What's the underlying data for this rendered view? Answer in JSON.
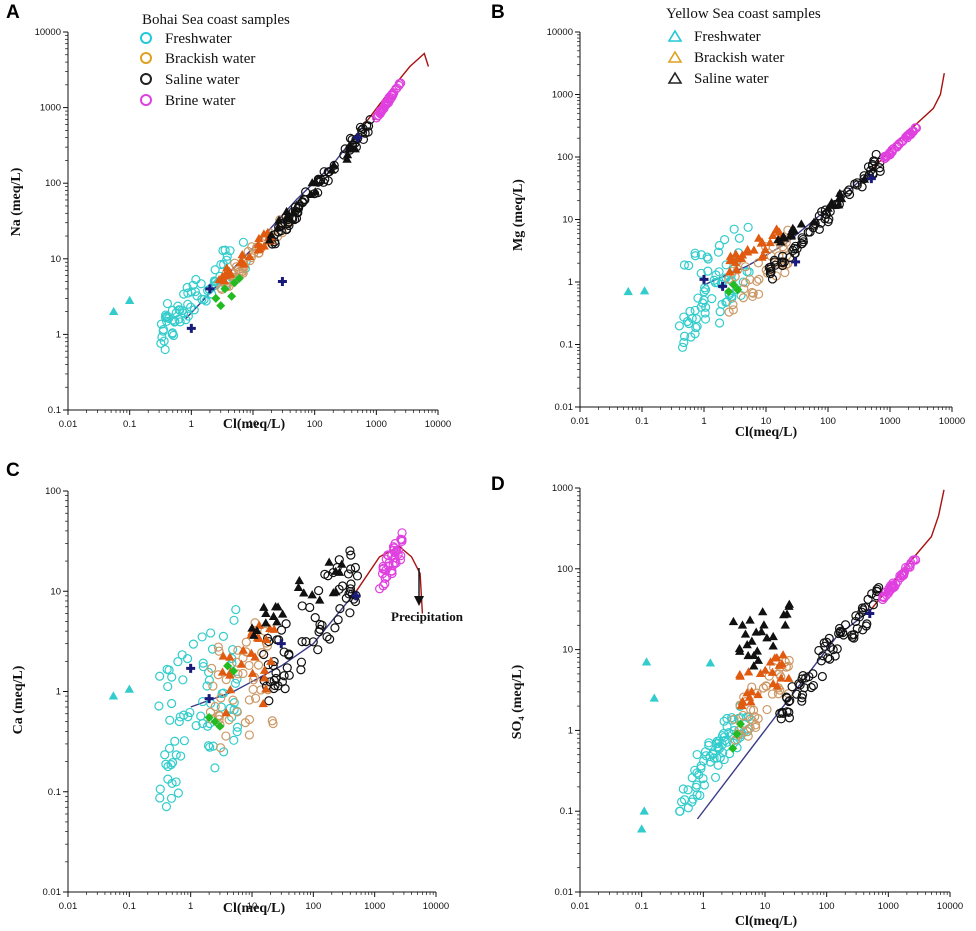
{
  "figure": {
    "letters": [
      "A",
      "B",
      "C",
      "D"
    ]
  },
  "colors": {
    "fresh": "#33cccc",
    "brackish": "#cc9966",
    "saline": "#111111",
    "brine": "#e040e0",
    "orange_tri": "#e05a10",
    "green": "#22bb22",
    "navy": "#1a1a7a",
    "trend_line": "#3a3a88",
    "evap_line": "#aa1111"
  },
  "legends": {
    "bohai": {
      "title": "Bohai Sea coast samples",
      "marker": "circle",
      "items": [
        {
          "label": "Freshwater",
          "color": "#22c8d8"
        },
        {
          "label": "Brackish water",
          "color": "#e0a020"
        },
        {
          "label": "Saline water",
          "color": "#222222"
        },
        {
          "label": "Brine water",
          "color": "#e040e0"
        }
      ]
    },
    "yellow": {
      "title": "Yellow Sea coast samples",
      "marker": "triangle",
      "items": [
        {
          "label": "Freshwater",
          "color": "#22c8d8"
        },
        {
          "label": "Brackish water",
          "color": "#e0a020"
        },
        {
          "label": "Saline water",
          "color": "#222222"
        }
      ]
    }
  },
  "annotations": {
    "precipitation": "Precipitation"
  },
  "chart_data": [
    {
      "panel": "A",
      "type": "scatter",
      "xscale": "log",
      "yscale": "log",
      "xlabel": "Cl(meq/L)",
      "ylabel": "Na (meq/L)",
      "xlim": [
        0.01,
        10000
      ],
      "ylim": [
        0.1,
        10000
      ],
      "xticks": [
        "0.01",
        "0.1",
        "1",
        "10",
        "100",
        "1000",
        "10000"
      ],
      "yticks": [
        "0.1",
        "1",
        "10",
        "100",
        "1000",
        "10000"
      ],
      "trend_line": [
        [
          0.8,
          1.6
        ],
        [
          3,
          5
        ],
        [
          10,
          14
        ],
        [
          50,
          60
        ],
        [
          200,
          180
        ],
        [
          600,
          560
        ]
      ],
      "evaporation_line": [
        [
          600,
          560
        ],
        [
          1500,
          1500
        ],
        [
          3500,
          3500
        ],
        [
          6000,
          5200
        ],
        [
          7000,
          3500
        ]
      ],
      "groups": [
        {
          "name": "Bohai freshwater",
          "marker": "circle",
          "color": "fresh",
          "cx": [
            0.3,
            8
          ],
          "cy": [
            0.6,
            25
          ],
          "n": 70,
          "seed": 11,
          "corr": 0.7
        },
        {
          "name": "Bohai brackish",
          "marker": "circle",
          "color": "brackish",
          "cx": [
            3,
            40
          ],
          "cy": [
            3,
            45
          ],
          "n": 45,
          "seed": 12,
          "corr": 0.8
        },
        {
          "name": "Bohai saline",
          "marker": "circle",
          "color": "saline",
          "cx": [
            20,
            800
          ],
          "cy": [
            15,
            700
          ],
          "n": 70,
          "seed": 13,
          "corr": 0.93
        },
        {
          "name": "Bohai brine",
          "marker": "circle",
          "color": "brine",
          "cx": [
            1000,
            2700
          ],
          "cy": [
            700,
            2500
          ],
          "n": 40,
          "seed": 14,
          "corr": 0.95
        },
        {
          "name": "Yellow brackish",
          "marker": "triangle",
          "color": "orange_tri",
          "cx": [
            2.5,
            20
          ],
          "cy": [
            4,
            25
          ],
          "n": 25,
          "seed": 15,
          "corr": 0.8
        },
        {
          "name": "Yellow saline",
          "marker": "triangle",
          "color": "saline",
          "cx": [
            15,
            500
          ],
          "cy": [
            15,
            400
          ],
          "n": 20,
          "seed": 16,
          "corr": 0.9
        },
        {
          "name": "Yellow freshwater",
          "marker": "triangle",
          "color": "fresh",
          "points": [
            [
              0.055,
              2.0
            ],
            [
              0.1,
              2.8
            ]
          ]
        },
        {
          "name": "Green markers",
          "marker": "diamond",
          "color": "green",
          "points": [
            [
              2.5,
              3
            ],
            [
              3.5,
              4
            ],
            [
              4.5,
              3.2
            ],
            [
              3,
              2.4
            ],
            [
              5,
              4.8
            ],
            [
              6,
              5.5
            ]
          ]
        },
        {
          "name": "Navy markers",
          "marker": "cross",
          "color": "navy",
          "points": [
            [
              1,
              1.2
            ],
            [
              2,
              4
            ],
            [
              30,
              5
            ],
            [
              500,
              400
            ]
          ]
        }
      ]
    },
    {
      "panel": "B",
      "type": "scatter",
      "xscale": "log",
      "yscale": "log",
      "xlabel": "Cl(meq/L)",
      "ylabel": "Mg (meq/L)",
      "xlim": [
        0.01,
        10000
      ],
      "ylim": [
        0.01,
        10000
      ],
      "xticks": [
        "0.01",
        "0.1",
        "1",
        "10",
        "100",
        "1000",
        "10000"
      ],
      "yticks": [
        "0.01",
        "0.1",
        "1",
        "10",
        "100",
        "1000",
        "10000"
      ],
      "trend_line": [
        [
          1,
          0.9
        ],
        [
          5,
          1.8
        ],
        [
          20,
          4
        ],
        [
          100,
          15
        ],
        [
          500,
          60
        ]
      ],
      "evaporation_line": [
        [
          500,
          60
        ],
        [
          1500,
          200
        ],
        [
          5000,
          600
        ],
        [
          6500,
          1000
        ],
        [
          7500,
          2200
        ]
      ],
      "groups": [
        {
          "name": "Bohai freshwater",
          "marker": "circle",
          "color": "fresh",
          "cx": [
            0.4,
            6
          ],
          "cy": [
            0.08,
            11
          ],
          "n": 70,
          "seed": 21,
          "corr": 0.35
        },
        {
          "name": "Bohai brackish",
          "marker": "circle",
          "color": "brackish",
          "cx": [
            2.5,
            25
          ],
          "cy": [
            0.3,
            8
          ],
          "n": 40,
          "seed": 22,
          "corr": 0.5
        },
        {
          "name": "Bohai saline",
          "marker": "circle",
          "color": "saline",
          "cx": [
            10,
            700
          ],
          "cy": [
            1,
            110
          ],
          "n": 70,
          "seed": 23,
          "corr": 0.9
        },
        {
          "name": "Bohai brine",
          "marker": "circle",
          "color": "brine",
          "cx": [
            800,
            2800
          ],
          "cy": [
            90,
            320
          ],
          "n": 40,
          "seed": 24,
          "corr": 0.95
        },
        {
          "name": "Yellow brackish",
          "marker": "triangle",
          "color": "orange_tri",
          "cx": [
            2.5,
            20
          ],
          "cy": [
            1.2,
            9
          ],
          "n": 25,
          "seed": 25,
          "corr": 0.6
        },
        {
          "name": "Yellow saline",
          "marker": "triangle",
          "color": "saline",
          "cx": [
            15,
            600
          ],
          "cy": [
            3,
            80
          ],
          "n": 20,
          "seed": 26,
          "corr": 0.85
        },
        {
          "name": "Yellow freshwater",
          "marker": "triangle",
          "color": "fresh",
          "points": [
            [
              0.06,
              0.7
            ],
            [
              0.11,
              0.72
            ]
          ]
        },
        {
          "name": "Green markers",
          "marker": "diamond",
          "color": "green",
          "points": [
            [
              2.5,
              0.7
            ],
            [
              3,
              0.9
            ],
            [
              3.5,
              0.75
            ]
          ]
        },
        {
          "name": "Navy markers",
          "marker": "cross",
          "color": "navy",
          "points": [
            [
              1,
              1.1
            ],
            [
              2,
              0.85
            ],
            [
              30,
              2.1
            ],
            [
              500,
              45
            ]
          ]
        }
      ]
    },
    {
      "panel": "C",
      "type": "scatter",
      "xscale": "log",
      "yscale": "log",
      "xlabel": "Cl(meq/L)",
      "ylabel": "Ca (meq/L)",
      "xlim": [
        0.01,
        10000
      ],
      "ylim": [
        0.01,
        100
      ],
      "xticks": [
        "0.01",
        "0.1",
        "1",
        "10",
        "100",
        "1000",
        "10000"
      ],
      "yticks": [
        "0.01",
        "0.1",
        "1",
        "10",
        "100"
      ],
      "trend_line": [
        [
          1,
          0.7
        ],
        [
          5,
          1
        ],
        [
          30,
          1.8
        ],
        [
          100,
          3
        ],
        [
          500,
          10
        ]
      ],
      "evaporation_line": [
        [
          500,
          10
        ],
        [
          1200,
          22
        ],
        [
          2500,
          28
        ],
        [
          4000,
          22
        ],
        [
          5500,
          15
        ],
        [
          6000,
          6
        ]
      ],
      "groups": [
        {
          "name": "Bohai freshwater",
          "marker": "circle",
          "color": "fresh",
          "cx": [
            0.3,
            6
          ],
          "cy": [
            0.06,
            7
          ],
          "n": 75,
          "seed": 31,
          "corr": 0.3
        },
        {
          "name": "Bohai brackish",
          "marker": "circle",
          "color": "brackish",
          "cx": [
            2,
            25
          ],
          "cy": [
            0.15,
            8
          ],
          "n": 45,
          "seed": 32,
          "corr": 0.3
        },
        {
          "name": "Bohai saline",
          "marker": "circle",
          "color": "saline",
          "cx": [
            15,
            600
          ],
          "cy": [
            0.6,
            40
          ],
          "n": 70,
          "seed": 33,
          "corr": 0.6
        },
        {
          "name": "Bohai brine",
          "marker": "circle",
          "color": "brine",
          "cx": [
            1200,
            2800
          ],
          "cy": [
            9,
            42
          ],
          "n": 40,
          "seed": 34,
          "corr": 0.6
        },
        {
          "name": "Yellow brackish",
          "marker": "triangle",
          "color": "orange_tri",
          "cx": [
            2.5,
            25
          ],
          "cy": [
            0.3,
            7
          ],
          "n": 25,
          "seed": 35,
          "corr": 0.4
        },
        {
          "name": "Yellow saline",
          "marker": "triangle",
          "color": "saline",
          "cx": [
            10,
            500
          ],
          "cy": [
            3,
            30
          ],
          "n": 22,
          "seed": 36,
          "corr": 0.6
        },
        {
          "name": "Yellow freshwater",
          "marker": "triangle",
          "color": "fresh",
          "points": [
            [
              0.055,
              0.9
            ],
            [
              0.1,
              1.05
            ]
          ]
        },
        {
          "name": "Green markers",
          "marker": "diamond",
          "color": "green",
          "points": [
            [
              2,
              0.55
            ],
            [
              2.5,
              0.5
            ],
            [
              3,
              0.45
            ],
            [
              4,
              1.8
            ],
            [
              5,
              1.6
            ]
          ]
        },
        {
          "name": "Navy markers",
          "marker": "cross",
          "color": "navy",
          "points": [
            [
              1,
              1.7
            ],
            [
              2,
              0.85
            ],
            [
              30,
              3
            ],
            [
              500,
              9
            ]
          ]
        }
      ]
    },
    {
      "panel": "D",
      "type": "scatter",
      "xscale": "log",
      "yscale": "log",
      "xlabel": "Cl(meq/L)",
      "ylabel": "SO₄ (meq/L)",
      "xlim": [
        0.01,
        10000
      ],
      "ylim": [
        0.01,
        1000
      ],
      "xticks": [
        "0.01",
        "0.1",
        "1",
        "10",
        "100",
        "1000",
        "10000"
      ],
      "yticks": [
        "0.01",
        "0.1",
        "1",
        "10",
        "100",
        "1000"
      ],
      "trend_line": [
        [
          0.8,
          0.08
        ],
        [
          5,
          0.5
        ],
        [
          30,
          3
        ],
        [
          150,
          15
        ],
        [
          500,
          30
        ]
      ],
      "evaporation_line": [
        [
          500,
          30
        ],
        [
          2000,
          110
        ],
        [
          5000,
          250
        ],
        [
          6500,
          450
        ],
        [
          8000,
          950
        ]
      ],
      "groups": [
        {
          "name": "Bohai freshwater",
          "marker": "circle",
          "color": "fresh",
          "cx": [
            0.4,
            6
          ],
          "cy": [
            0.08,
            3
          ],
          "n": 75,
          "seed": 41,
          "corr": 0.7
        },
        {
          "name": "Bohai brackish",
          "marker": "circle",
          "color": "brackish",
          "cx": [
            3,
            25
          ],
          "cy": [
            0.6,
            9
          ],
          "n": 40,
          "seed": 42,
          "corr": 0.5
        },
        {
          "name": "Bohai saline",
          "marker": "circle",
          "color": "saline",
          "cx": [
            15,
            700
          ],
          "cy": [
            1,
            70
          ],
          "n": 70,
          "seed": 43,
          "corr": 0.8
        },
        {
          "name": "Bohai brine",
          "marker": "circle",
          "color": "brine",
          "cx": [
            800,
            2800
          ],
          "cy": [
            40,
            140
          ],
          "n": 40,
          "seed": 44,
          "corr": 0.9
        },
        {
          "name": "Yellow brackish",
          "marker": "triangle",
          "color": "orange_tri",
          "cx": [
            3,
            25
          ],
          "cy": [
            1.5,
            12
          ],
          "n": 25,
          "seed": 45,
          "corr": 0.5
        },
        {
          "name": "Yellow saline",
          "marker": "triangle",
          "color": "saline",
          "cx": [
            3,
            25
          ],
          "cy": [
            5,
            45
          ],
          "n": 25,
          "seed": 46,
          "corr": 0.3
        },
        {
          "name": "Yellow freshwater",
          "marker": "triangle",
          "color": "fresh",
          "points": [
            [
              0.1,
              0.06
            ],
            [
              0.11,
              0.1
            ],
            [
              0.12,
              7
            ],
            [
              0.16,
              2.5
            ],
            [
              1.3,
              6.8
            ]
          ]
        },
        {
          "name": "Green markers",
          "marker": "diamond",
          "color": "green",
          "points": [
            [
              3,
              0.6
            ],
            [
              3.5,
              0.9
            ],
            [
              4,
              1.2
            ]
          ]
        },
        {
          "name": "Navy markers",
          "marker": "cross",
          "color": "navy",
          "points": [
            [
              500,
              28
            ]
          ]
        }
      ]
    }
  ]
}
